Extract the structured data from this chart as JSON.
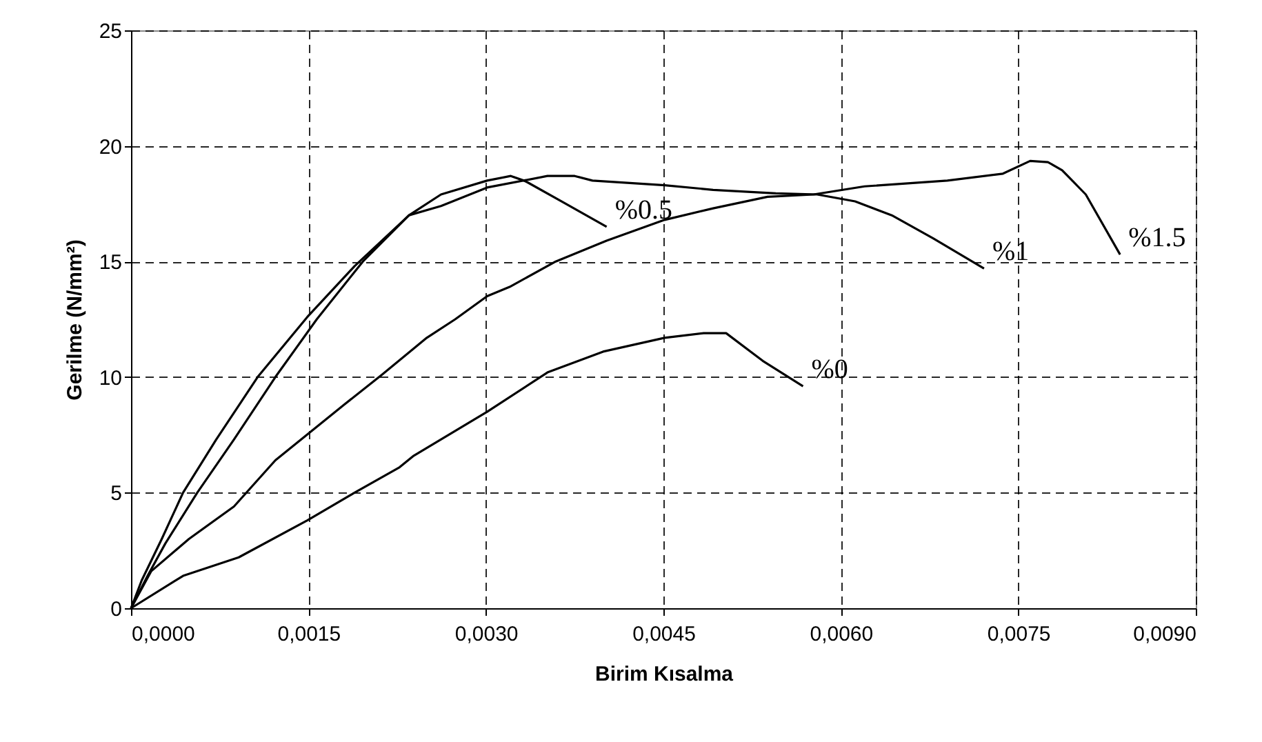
{
  "chart_data": {
    "type": "line",
    "xlabel": "Birim Kısalma",
    "ylabel": "Gerilme (N/mm²)",
    "xlim": [
      0,
      0.009
    ],
    "ylim": [
      0,
      25
    ],
    "xticks": [
      {
        "value": 0,
        "label": "0,0000"
      },
      {
        "value": 0.0015,
        "label": "0,0015"
      },
      {
        "value": 0.003,
        "label": "0,0030"
      },
      {
        "value": 0.0045,
        "label": "0,0045"
      },
      {
        "value": 0.006,
        "label": "0,0060"
      },
      {
        "value": 0.0075,
        "label": "0,0075"
      },
      {
        "value": 0.009,
        "label": "0,0090"
      }
    ],
    "yticks": [
      0,
      5,
      10,
      15,
      20,
      25
    ],
    "grid": true,
    "marker": "none",
    "line_style": "solid",
    "series": [
      {
        "name": "%0.5",
        "color": "#000000",
        "x": [
          0,
          9e-05,
          0.00026,
          0.00044,
          0.00072,
          0.00107,
          0.00149,
          0.00189,
          0.00235,
          0.00262,
          0.00301,
          0.00321,
          0.00332,
          0.00336,
          0.00364,
          0.00402
        ],
        "values": [
          0,
          1.2,
          3.0,
          5.0,
          7.3,
          10.0,
          12.6,
          14.8,
          17.0,
          17.9,
          18.5,
          18.7,
          18.5,
          18.4,
          17.6,
          16.5
        ]
      },
      {
        "name": "%1",
        "color": "#000000",
        "x": [
          0,
          0.00014,
          0.00029,
          0.00056,
          0.00087,
          0.00122,
          0.00157,
          0.00196,
          0.00235,
          0.00262,
          0.00301,
          0.00352,
          0.00375,
          0.0039,
          0.00451,
          0.00492,
          0.00545,
          0.0058,
          0.00612,
          0.00643,
          0.00678,
          0.00721
        ],
        "values": [
          0,
          1.4,
          2.8,
          5.0,
          7.3,
          10.0,
          12.5,
          15.0,
          17.0,
          17.4,
          18.2,
          18.7,
          18.7,
          18.5,
          18.3,
          18.1,
          17.95,
          17.9,
          17.6,
          17.0,
          16.0,
          14.7
        ]
      },
      {
        "name": "%1.5",
        "color": "#000000",
        "x": [
          0,
          0.00017,
          0.00049,
          0.00087,
          0.00122,
          0.0018,
          0.00212,
          0.0025,
          0.00274,
          0.00301,
          0.0032,
          0.00359,
          0.00402,
          0.00451,
          0.00492,
          0.00538,
          0.00577,
          0.0062,
          0.0069,
          0.00737,
          0.0076,
          0.00775,
          0.00787,
          0.00807,
          0.00836
        ],
        "values": [
          0,
          1.6,
          3.0,
          4.4,
          6.4,
          8.8,
          10.1,
          11.7,
          12.5,
          13.5,
          13.9,
          15.0,
          15.9,
          16.8,
          17.3,
          17.8,
          17.9,
          18.25,
          18.5,
          18.8,
          19.35,
          19.3,
          18.95,
          17.9,
          15.3
        ]
      },
      {
        "name": "%0",
        "color": "#000000",
        "x": [
          0,
          0.00044,
          0.00091,
          0.00149,
          0.00189,
          0.00227,
          0.00239,
          0.00301,
          0.00352,
          0.00399,
          0.00451,
          0.00484,
          0.00503,
          0.00534,
          0.00568
        ],
        "values": [
          0,
          1.4,
          2.2,
          3.8,
          5.0,
          6.1,
          6.6,
          8.5,
          10.2,
          11.1,
          11.7,
          11.9,
          11.9,
          10.7,
          9.6
        ]
      }
    ]
  }
}
